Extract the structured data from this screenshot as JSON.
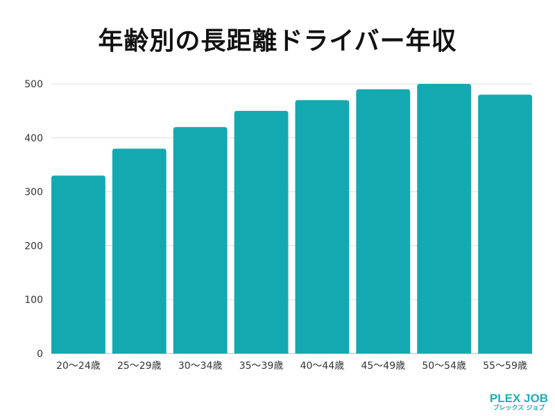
{
  "chart_data": {
    "type": "bar",
    "title": "年齢別の長距離ドライバー年収",
    "categories": [
      "20〜24歳",
      "25〜29歳",
      "30〜34歳",
      "35〜39歳",
      "40〜44歳",
      "45〜49歳",
      "50〜54歳",
      "55〜59歳"
    ],
    "values": [
      330,
      380,
      420,
      450,
      470,
      490,
      500,
      480
    ],
    "xlabel": "",
    "ylabel": "",
    "ylim": [
      0,
      500
    ],
    "yticks": [
      0,
      100,
      200,
      300,
      400,
      500
    ],
    "grid": true,
    "bar_color": "#14a9b0"
  },
  "logo": {
    "line1": "PLEX JOB",
    "line2": "プレックス ジョブ",
    "color": "#1ab0b8"
  }
}
